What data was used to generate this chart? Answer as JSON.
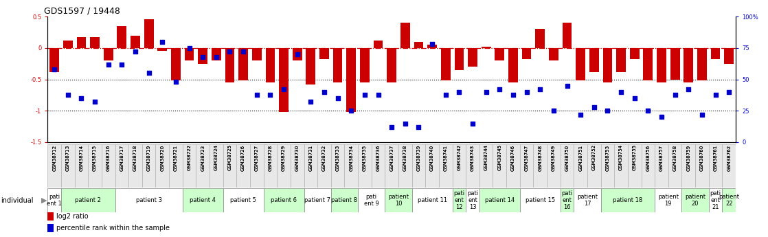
{
  "title": "GDS1597 / 19448",
  "samples": [
    "GSM38712",
    "GSM38713",
    "GSM38714",
    "GSM38715",
    "GSM38716",
    "GSM38717",
    "GSM38718",
    "GSM38719",
    "GSM38720",
    "GSM38721",
    "GSM38722",
    "GSM38723",
    "GSM38724",
    "GSM38725",
    "GSM38726",
    "GSM38727",
    "GSM38728",
    "GSM38729",
    "GSM38730",
    "GSM38731",
    "GSM38732",
    "GSM38733",
    "GSM38734",
    "GSM38735",
    "GSM38736",
    "GSM38737",
    "GSM38738",
    "GSM38739",
    "GSM38740",
    "GSM38741",
    "GSM38742",
    "GSM38743",
    "GSM38744",
    "GSM38745",
    "GSM38746",
    "GSM38747",
    "GSM38748",
    "GSM38749",
    "GSM38750",
    "GSM38751",
    "GSM38752",
    "GSM38753",
    "GSM38754",
    "GSM38755",
    "GSM38756",
    "GSM38757",
    "GSM38758",
    "GSM38759",
    "GSM38760",
    "GSM38761",
    "GSM38762"
  ],
  "log2_ratio": [
    -0.38,
    0.12,
    0.17,
    0.17,
    -0.2,
    0.35,
    0.2,
    0.46,
    -0.05,
    -0.52,
    -0.2,
    -0.25,
    -0.2,
    -0.55,
    -0.52,
    -0.2,
    -0.55,
    -1.02,
    -0.2,
    -0.58,
    -0.18,
    -0.55,
    -1.02,
    -0.55,
    0.12,
    -0.55,
    0.4,
    0.1,
    0.05,
    -0.52,
    -0.35,
    -0.3,
    0.02,
    -0.2,
    -0.55,
    -0.18,
    0.3,
    -0.2,
    0.4,
    -0.52,
    -0.38,
    -0.55,
    -0.38,
    -0.18,
    -0.52,
    -0.55,
    -0.5,
    -0.55,
    -0.52,
    -0.18,
    -0.25
  ],
  "percentile": [
    58,
    38,
    35,
    32,
    62,
    62,
    72,
    55,
    80,
    48,
    75,
    68,
    68,
    72,
    72,
    38,
    38,
    42,
    70,
    32,
    40,
    35,
    25,
    38,
    38,
    12,
    15,
    12,
    78,
    38,
    40,
    15,
    40,
    42,
    38,
    40,
    42,
    25,
    45,
    22,
    28,
    25,
    40,
    35,
    25,
    20,
    38,
    42,
    22,
    38,
    40
  ],
  "patients": [
    {
      "label": "pati\nent 1",
      "start": 0,
      "end": 1,
      "color": "#ffffff"
    },
    {
      "label": "patient 2",
      "start": 1,
      "end": 5,
      "color": "#ccffcc"
    },
    {
      "label": "patient 3",
      "start": 5,
      "end": 10,
      "color": "#ffffff"
    },
    {
      "label": "patient 4",
      "start": 10,
      "end": 13,
      "color": "#ccffcc"
    },
    {
      "label": "patient 5",
      "start": 13,
      "end": 16,
      "color": "#ffffff"
    },
    {
      "label": "patient 6",
      "start": 16,
      "end": 19,
      "color": "#ccffcc"
    },
    {
      "label": "patient 7",
      "start": 19,
      "end": 21,
      "color": "#ffffff"
    },
    {
      "label": "patient 8",
      "start": 21,
      "end": 23,
      "color": "#ccffcc"
    },
    {
      "label": "pati\nent 9",
      "start": 23,
      "end": 25,
      "color": "#ffffff"
    },
    {
      "label": "patient\n10",
      "start": 25,
      "end": 27,
      "color": "#ccffcc"
    },
    {
      "label": "patient 11",
      "start": 27,
      "end": 30,
      "color": "#ffffff"
    },
    {
      "label": "pati\nent\n12",
      "start": 30,
      "end": 31,
      "color": "#ccffcc"
    },
    {
      "label": "pati\nent\n13",
      "start": 31,
      "end": 32,
      "color": "#ffffff"
    },
    {
      "label": "patient 14",
      "start": 32,
      "end": 35,
      "color": "#ccffcc"
    },
    {
      "label": "patient 15",
      "start": 35,
      "end": 38,
      "color": "#ffffff"
    },
    {
      "label": "pati\nent\n16",
      "start": 38,
      "end": 39,
      "color": "#ccffcc"
    },
    {
      "label": "patient\n17",
      "start": 39,
      "end": 41,
      "color": "#ffffff"
    },
    {
      "label": "patient 18",
      "start": 41,
      "end": 45,
      "color": "#ccffcc"
    },
    {
      "label": "patient\n19",
      "start": 45,
      "end": 47,
      "color": "#ffffff"
    },
    {
      "label": "patient\n20",
      "start": 47,
      "end": 49,
      "color": "#ccffcc"
    },
    {
      "label": "pati\nent\n21",
      "start": 49,
      "end": 50,
      "color": "#ffffff"
    },
    {
      "label": "patient\n22",
      "start": 50,
      "end": 51,
      "color": "#ccffcc"
    }
  ],
  "ylim_left": [
    -1.5,
    0.5
  ],
  "ylim_right": [
    0,
    100
  ],
  "bar_color": "#cc0000",
  "dot_color": "#0000cc",
  "title_fontsize": 9,
  "tick_fontsize": 6,
  "label_fontsize": 7,
  "sample_fontsize": 5,
  "patient_fontsize": 6
}
